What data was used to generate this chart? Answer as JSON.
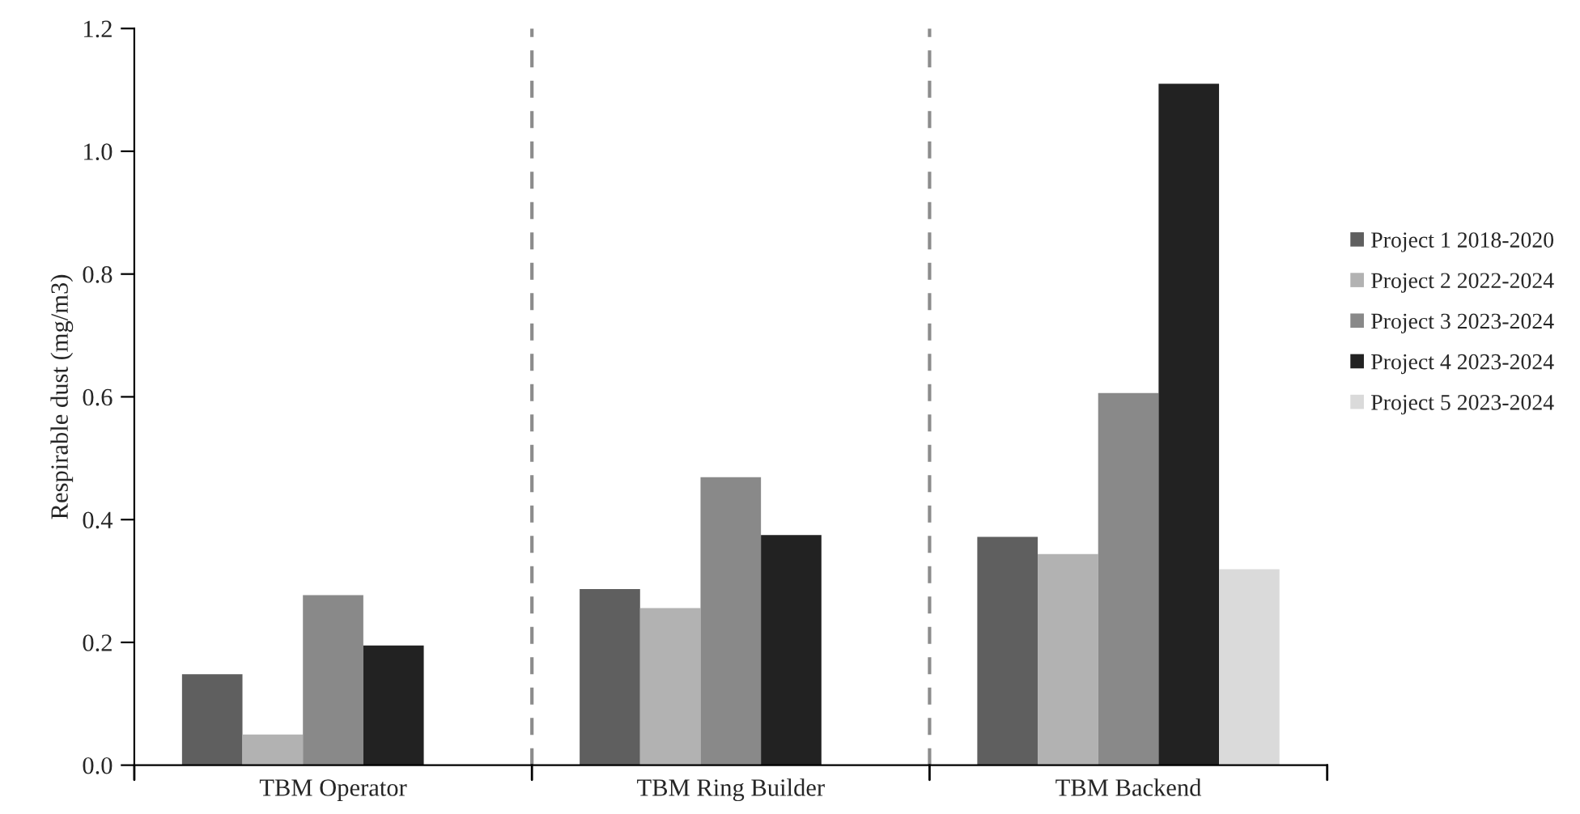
{
  "chart_data": {
    "type": "bar",
    "ylabel": "Respirable dust (mg/m3)",
    "categories": [
      "TBM Operator",
      "TBM Ring Builder",
      "TBM Backend"
    ],
    "series": [
      {
        "name": "Project 1 2018-2020",
        "color": "#5f5f5f",
        "values": [
          0.148,
          0.287,
          0.372
        ]
      },
      {
        "name": "Project 2 2022-2024",
        "color": "#b2b2b2",
        "values": [
          0.05,
          0.256,
          0.344
        ]
      },
      {
        "name": "Project 3 2023-2024",
        "color": "#898989",
        "values": [
          0.277,
          0.469,
          0.606
        ]
      },
      {
        "name": "Project 4 2023-2024",
        "color": "#222222",
        "values": [
          0.195,
          0.375,
          1.11
        ]
      },
      {
        "name": "Project 5 2023-2024",
        "color": "#dadada",
        "values": [
          null,
          null,
          0.319
        ]
      }
    ],
    "ylim": [
      0,
      1.2
    ],
    "yticks": [
      {
        "value": 0,
        "label": "0.0"
      },
      {
        "value": 0.2,
        "label": "0.2"
      },
      {
        "value": 0.4,
        "label": "0.4"
      },
      {
        "value": 0.6,
        "label": "0.6"
      },
      {
        "value": 0.8,
        "label": "0.8"
      },
      {
        "value": 1.0,
        "label": "1.0"
      },
      {
        "value": 1.2,
        "label": "1.2"
      }
    ],
    "grid": false,
    "legend": "right"
  }
}
